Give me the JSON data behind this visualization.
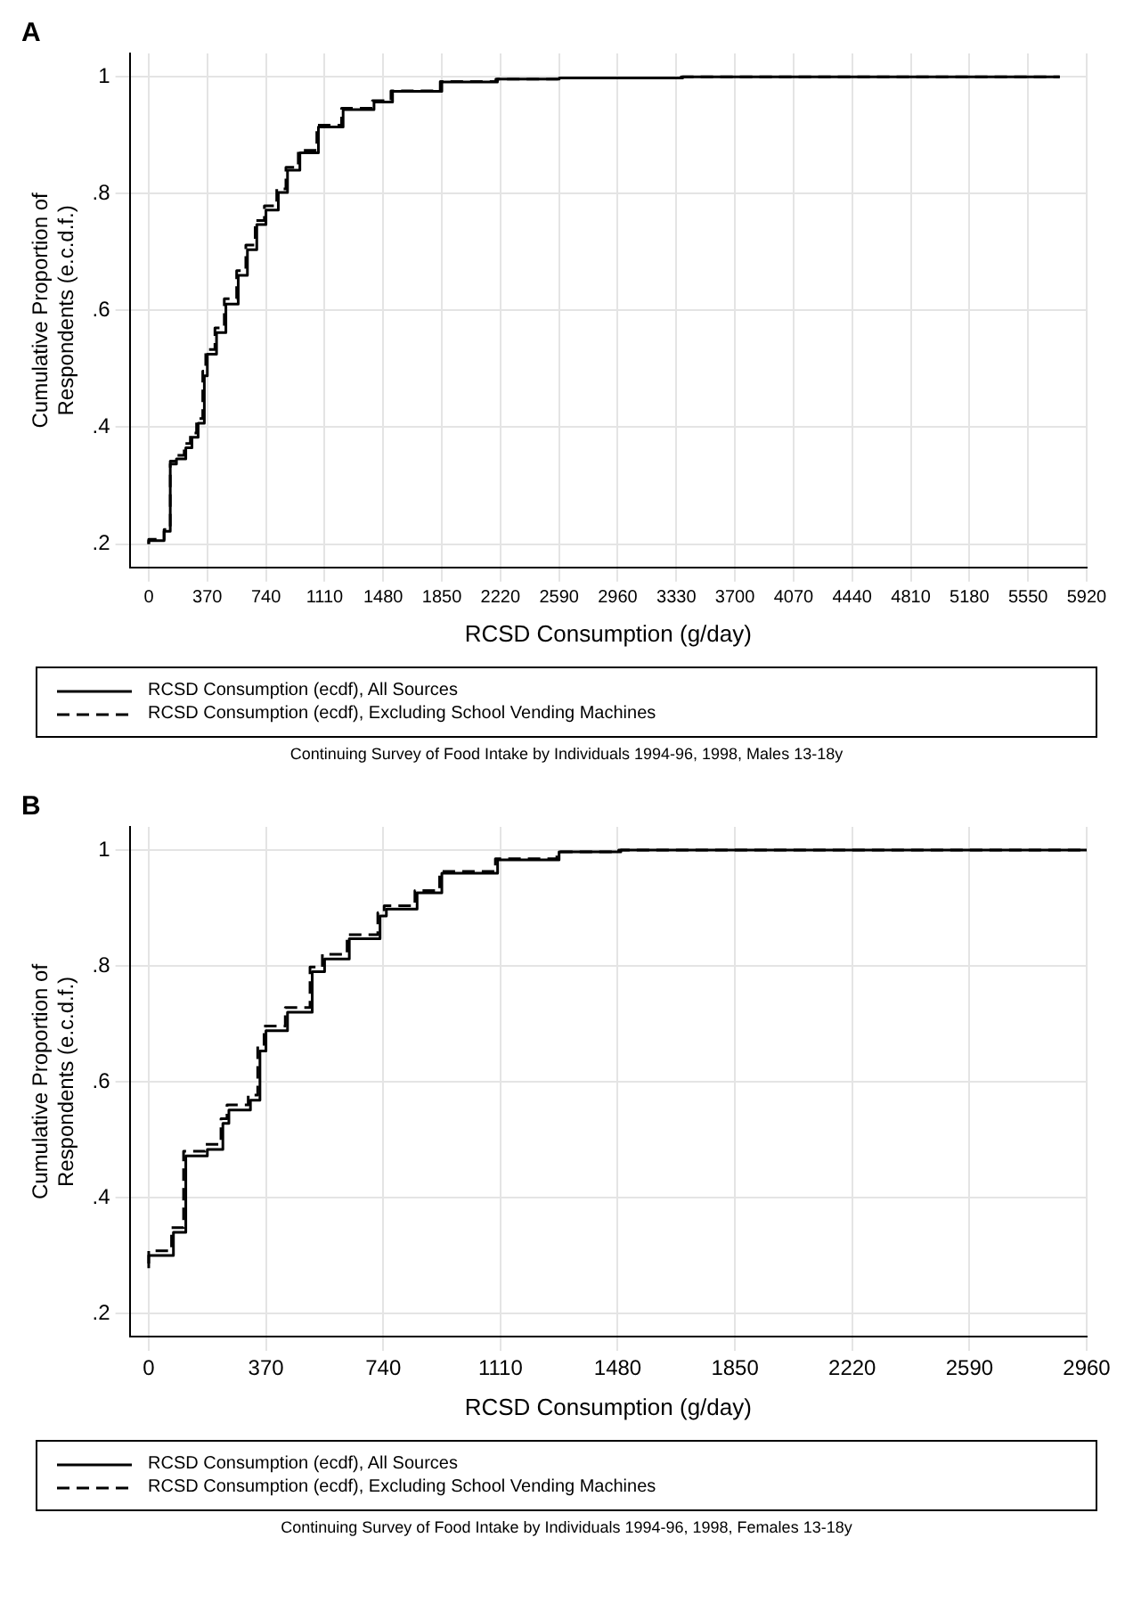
{
  "chart_data": [
    {
      "type": "step",
      "title": "A",
      "xlabel": "RCSD Consumption (g/day)",
      "ylabel": "Cumulative Proportion of Respondents (e.c.d.f.)",
      "annotations": [
        "Continuing Survey of Food Intake by Individuals 1994-96, 1998, Males 13-18y"
      ],
      "legend": "bottom",
      "grid": true,
      "xlim": [
        -120,
        5920
      ],
      "ylim": [
        0.16,
        1.04
      ],
      "xticks": [
        0,
        370,
        740,
        1110,
        1480,
        1850,
        2220,
        2590,
        2960,
        3330,
        3700,
        4070,
        4440,
        4810,
        5180,
        5550,
        5920
      ],
      "yticks": [
        {
          "value": 0.2,
          "label": ".2"
        },
        {
          "value": 0.4,
          "label": ".4"
        },
        {
          "value": 0.6,
          "label": ".6"
        },
        {
          "value": 0.8,
          "label": ".8"
        },
        {
          "value": 1,
          "label": "1"
        }
      ],
      "series": [
        {
          "name": "RCSD Consumption (ecdf), All Sources",
          "color": "#000000",
          "line_style": "solid",
          "x": [
            0,
            97,
            136,
            175,
            234,
            273,
            312,
            351,
            370,
            428,
            487,
            565,
            623,
            682,
            740,
            818,
            876,
            954,
            1071,
            1227,
            1422,
            1539,
            1850,
            2201,
            2591,
            3370,
            5750
          ],
          "values": [
            0.2,
            0.206,
            0.222,
            0.337,
            0.346,
            0.365,
            0.383,
            0.407,
            0.488,
            0.525,
            0.562,
            0.611,
            0.66,
            0.704,
            0.747,
            0.772,
            0.802,
            0.84,
            0.87,
            0.914,
            0.944,
            0.957,
            0.975,
            0.991,
            0.996,
            0.998,
            1
          ]
        },
        {
          "name": "RCSD Consumption (ecdf), Excluding School Vending Machines",
          "color": "#000000",
          "line_style": "dashed",
          "x": [
            0,
            97,
            136,
            165,
            224,
            263,
            302,
            341,
            360,
            418,
            477,
            555,
            613,
            672,
            730,
            808,
            866,
            944,
            1061,
            1217,
            1412,
            1529,
            1840,
            2191,
            2581,
            3360,
            5750
          ],
          "values": [
            0.2,
            0.208,
            0.225,
            0.342,
            0.352,
            0.372,
            0.39,
            0.415,
            0.496,
            0.533,
            0.57,
            0.62,
            0.668,
            0.712,
            0.754,
            0.779,
            0.808,
            0.845,
            0.874,
            0.917,
            0.946,
            0.959,
            0.976,
            0.992,
            0.996,
            0.998,
            1
          ]
        }
      ]
    },
    {
      "type": "step",
      "title": "B",
      "xlabel": "RCSD Consumption (g/day)",
      "ylabel": "Cumulative Proportion of Respondents (e.c.d.f.)",
      "annotations": [
        "Continuing Survey of Food Intake by Individuals 1994-96, 1998, Females 13-18y"
      ],
      "legend": "bottom",
      "grid": true,
      "xlim": [
        -60,
        2960
      ],
      "ylim": [
        0.16,
        1.04
      ],
      "xticks": [
        0,
        370,
        740,
        1110,
        1480,
        1850,
        2220,
        2590,
        2960
      ],
      "yticks": [
        {
          "value": 0.2,
          "label": ".2"
        },
        {
          "value": 0.4,
          "label": ".4"
        },
        {
          "value": 0.6,
          "label": ".6"
        },
        {
          "value": 0.8,
          "label": ".8"
        },
        {
          "value": 1,
          "label": "1"
        }
      ],
      "series": [
        {
          "name": "RCSD Consumption (ecdf), All Sources",
          "color": "#000000",
          "line_style": "solid",
          "x": [
            0,
            78,
            117,
            185,
            234,
            253,
            321,
            351,
            370,
            438,
            516,
            555,
            633,
            730,
            750,
            847,
            925,
            1101,
            1295,
            1490,
            2960
          ],
          "values": [
            0.278,
            0.3,
            0.34,
            0.472,
            0.483,
            0.528,
            0.551,
            0.568,
            0.653,
            0.688,
            0.72,
            0.79,
            0.812,
            0.847,
            0.886,
            0.898,
            0.926,
            0.96,
            0.983,
            0.997,
            1
          ]
        },
        {
          "name": "RCSD Consumption (ecdf), Excluding School Vending Machines",
          "color": "#000000",
          "line_style": "dashed",
          "x": [
            0,
            72,
            110,
            178,
            228,
            247,
            314,
            344,
            364,
            431,
            509,
            548,
            626,
            723,
            743,
            840,
            918,
            1094,
            1288,
            1483,
            2960
          ],
          "values": [
            0.286,
            0.308,
            0.348,
            0.48,
            0.492,
            0.536,
            0.56,
            0.577,
            0.662,
            0.696,
            0.728,
            0.798,
            0.82,
            0.854,
            0.892,
            0.904,
            0.93,
            0.963,
            0.985,
            0.997,
            1
          ]
        }
      ]
    }
  ]
}
